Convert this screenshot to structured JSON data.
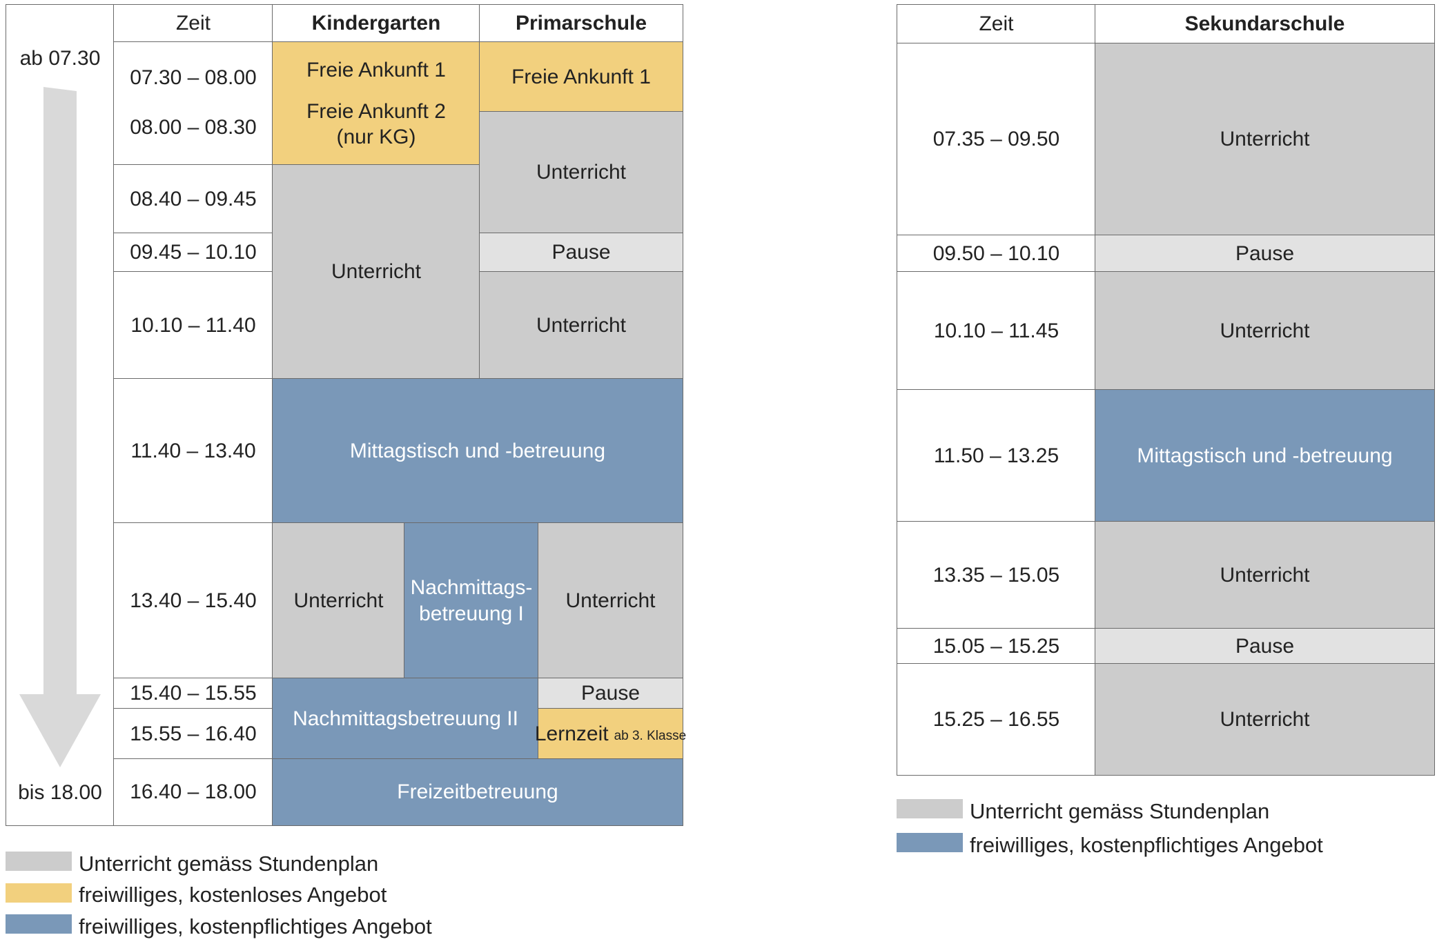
{
  "left_table": {
    "headers": {
      "time": "Zeit",
      "kindergarten": "Kindergarten",
      "primarschule": "Primarschule"
    },
    "arrow": {
      "start_label": "ab 07.30",
      "end_label": "bis 18.00"
    },
    "times": [
      "07.30 – 08.00",
      "08.00 – 08.30",
      "08.40 – 09.45",
      "09.45 – 10.10",
      "10.10 – 11.40",
      "11.40 –  13.40",
      "13.40 – 15.40",
      "15.40 – 15.55",
      "15.55 – 16.40",
      "16.40 – 18.00"
    ],
    "kg": {
      "freie_ankunft_1": "Freie Ankunft 1",
      "freie_ankunft_2": "Freie Ankunft 2",
      "nur_kg": "(nur KG)",
      "unterricht_morning": "Unterricht",
      "unterricht_afternoon": "Unterricht",
      "nachmittags_1a": "Nachmittags-",
      "nachmittags_1b": "betreuung I",
      "nachmittags_2": "Nachmittagsbetreuung II"
    },
    "ps": {
      "freie_ankunft_1": "Freie Ankunft 1",
      "unterricht_1": "Unterricht",
      "pause": "Pause",
      "unterricht_2": "Unterricht",
      "unterricht_afternoon": "Unterricht",
      "pause_afternoon": "Pause",
      "lernzeit": "Lernzeit",
      "lernzeit_note": "ab 3. Klasse"
    },
    "shared": {
      "mittagstisch": "Mittagstisch und -betreuung",
      "freizeit": "Freizeitbetreuung"
    },
    "legend": [
      "Unterricht gemäss Stundenplan",
      "freiwilliges, kostenloses Angebot",
      "freiwilliges, kostenpflichtiges Angebot"
    ]
  },
  "right_table": {
    "headers": {
      "time": "Zeit",
      "sekundarschule": "Sekundarschule"
    },
    "rows": [
      {
        "time": "07.35 – 09.50",
        "activity": "Unterricht"
      },
      {
        "time": "09.50 – 10.10",
        "activity": "Pause"
      },
      {
        "time": "10.10 – 11.45",
        "activity": "Unterricht"
      },
      {
        "time": "11.50 – 13.25",
        "activity": "Mittagstisch und -betreuung"
      },
      {
        "time": "13.35 – 15.05",
        "activity": "Unterricht"
      },
      {
        "time": "15.05 – 15.25",
        "activity": "Pause"
      },
      {
        "time": "15.25 – 16.55",
        "activity": "Unterricht"
      }
    ],
    "legend": [
      "Unterricht gemäss Stundenplan",
      "freiwilliges, kostenpflichtiges Angebot"
    ]
  },
  "colors": {
    "unterricht": "#cccccc",
    "pause": "#e2e2e2",
    "kostenlos": "#f2d07e",
    "kostenpflichtig": "#7a98b8"
  }
}
